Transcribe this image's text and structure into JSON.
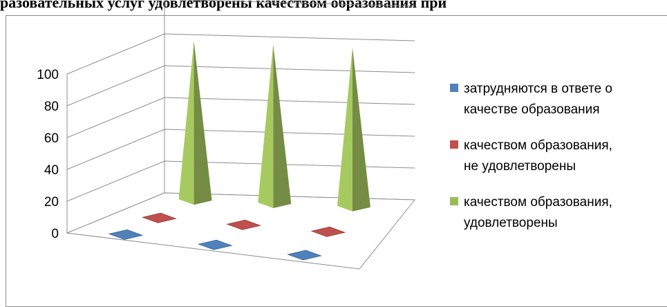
{
  "page_title": "разовательных услуг удовлетворены качеством образования при",
  "chart_data": {
    "type": "bar",
    "shape": "pyramid-3d",
    "categories": [
      "",
      "",
      ""
    ],
    "series": [
      {
        "name": "затрудняются в ответе о качестве образования",
        "values": [
          0,
          0,
          0
        ],
        "color": "#4f81bd"
      },
      {
        "name": "качеством образования, не удовлетворены",
        "values": [
          0,
          0,
          0
        ],
        "color": "#c0504d"
      },
      {
        "name": "качеством образования, удовлетворены",
        "values": [
          100,
          100,
          100
        ],
        "color": "#9bbb59"
      }
    ],
    "ylim": [
      0,
      100
    ],
    "yticks": [
      "0",
      "20",
      "40",
      "60",
      "80",
      "100"
    ],
    "grid": true,
    "legend": "right",
    "legend_lines": [
      [
        "затрудняются в ответе о",
        "качестве образования"
      ],
      [
        "качеством образования,",
        "не удовлетворены"
      ],
      [
        "качеством образования,",
        "удовлетворены"
      ]
    ]
  }
}
